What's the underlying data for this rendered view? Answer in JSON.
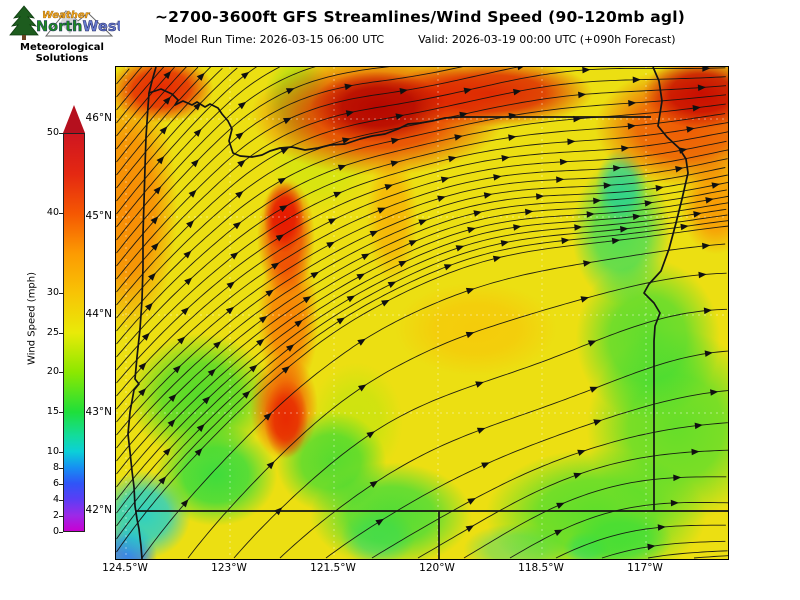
{
  "branding": {
    "weather": "Weather",
    "north": "North",
    "west": "West",
    "tagline_line1": "Meteorological",
    "tagline_line2": "Solutions"
  },
  "header": {
    "title": "~2700-3600ft GFS Streamlines/Wind Speed (90-120mb agl)",
    "model_run": "Model Run Time: 2026-03-15 06:00 UTC",
    "valid": "Valid: 2026-03-19 00:00 UTC  (+090h Forecast)"
  },
  "colorbar": {
    "label": "Wind Speed (mph)",
    "min": 0,
    "max": 50,
    "ticks": [
      0,
      2,
      4,
      6,
      8,
      10,
      15,
      20,
      25,
      30,
      40,
      50
    ],
    "arrow_color": "#b5101e",
    "gradient_stops": [
      [
        0,
        "#c800d2"
      ],
      [
        4,
        "#9b2ae8"
      ],
      [
        8,
        "#5a3ef5"
      ],
      [
        12,
        "#2f55f7"
      ],
      [
        16,
        "#1690f2"
      ],
      [
        20,
        "#0bd0d8"
      ],
      [
        24,
        "#13dc9c"
      ],
      [
        30,
        "#1fdf3a"
      ],
      [
        40,
        "#8ce800"
      ],
      [
        50,
        "#e9ea08"
      ],
      [
        60,
        "#f8c305"
      ],
      [
        70,
        "#fc9a02"
      ],
      [
        80,
        "#f55702"
      ],
      [
        90,
        "#e42812"
      ],
      [
        100,
        "#cf1620"
      ]
    ]
  },
  "axes": {
    "lat_labels": [
      {
        "text": "46°N",
        "deg": 46
      },
      {
        "text": "45°N",
        "deg": 45
      },
      {
        "text": "44°N",
        "deg": 44
      },
      {
        "text": "43°N",
        "deg": 43
      },
      {
        "text": "42°N",
        "deg": 42
      }
    ],
    "lon_labels": [
      {
        "text": "124.5°W",
        "deg": 124.5
      },
      {
        "text": "123°W",
        "deg": 123
      },
      {
        "text": "121.5°W",
        "deg": 121.5
      },
      {
        "text": "120°W",
        "deg": 120
      },
      {
        "text": "118.5°W",
        "deg": 118.5
      },
      {
        "text": "117°W",
        "deg": 117
      }
    ]
  },
  "field": {
    "base_color": "#ecdf12",
    "blobs": [
      [
        262,
        40,
        80,
        42,
        "#b20400",
        0.95
      ],
      [
        375,
        26,
        120,
        40,
        "#dd1800",
        0.9
      ],
      [
        262,
        48,
        150,
        72,
        "#e82500",
        0.85
      ],
      [
        45,
        22,
        62,
        40,
        "#e51500",
        0.9
      ],
      [
        585,
        26,
        68,
        42,
        "#c70800",
        0.95
      ],
      [
        568,
        60,
        105,
        70,
        "#ee3a01",
        0.8
      ],
      [
        168,
        150,
        24,
        42,
        "#e41200",
        0.9
      ],
      [
        170,
        170,
        34,
        70,
        "#ee2900",
        0.8
      ],
      [
        170,
        352,
        26,
        46,
        "#e72301",
        0.9
      ],
      [
        168,
        340,
        40,
        62,
        "#f04c02",
        0.8
      ],
      [
        172,
        252,
        36,
        88,
        "#fa7302",
        0.85
      ],
      [
        12,
        140,
        58,
        150,
        "#fa7c02",
        0.85
      ],
      [
        600,
        138,
        42,
        58,
        "#fa9002",
        0.85
      ],
      [
        276,
        150,
        30,
        78,
        "#fba502",
        0.7
      ],
      [
        360,
        262,
        95,
        55,
        "#fbbc05",
        0.55
      ],
      [
        182,
        32,
        40,
        52,
        "#96dd12",
        0.8
      ],
      [
        205,
        95,
        65,
        60,
        "#c8e80e",
        0.6
      ],
      [
        505,
        120,
        30,
        45,
        "#1ed0a0",
        0.75
      ],
      [
        505,
        165,
        58,
        85,
        "#2edc62",
        0.8
      ],
      [
        532,
        272,
        85,
        95,
        "#3cdc35",
        0.8
      ],
      [
        560,
        360,
        105,
        115,
        "#44de2f",
        0.8
      ],
      [
        85,
        330,
        85,
        75,
        "#3bda2e",
        0.85
      ],
      [
        100,
        408,
        72,
        60,
        "#2cdc40",
        0.9
      ],
      [
        215,
        395,
        65,
        60,
        "#35da36",
        0.8
      ],
      [
        240,
        355,
        55,
        70,
        "#b8e60e",
        0.6
      ],
      [
        28,
        448,
        55,
        52,
        "#1ccfd2",
        0.9
      ],
      [
        12,
        488,
        34,
        38,
        "#2f80f2",
        0.95
      ],
      [
        275,
        448,
        95,
        62,
        "#38dc3c",
        0.85
      ],
      [
        262,
        470,
        44,
        33,
        "#25d7a2",
        0.6
      ],
      [
        480,
        448,
        130,
        78,
        "#45de30",
        0.85
      ],
      [
        505,
        472,
        60,
        36,
        "#2ee04e",
        0.8
      ],
      [
        470,
        481,
        27,
        19,
        "#24d8b4",
        0.7
      ],
      [
        400,
        482,
        62,
        30,
        "#30d986",
        0.5
      ]
    ]
  },
  "borders": {
    "color": "#141414",
    "columbia_river_or_wa": [
      [
        40,
        0
      ],
      [
        36,
        14
      ],
      [
        33,
        26
      ],
      [
        45,
        22
      ],
      [
        56,
        27
      ],
      [
        62,
        33
      ],
      [
        59,
        38
      ],
      [
        67,
        34
      ],
      [
        76,
        38
      ],
      [
        81,
        35
      ],
      [
        89,
        40
      ],
      [
        94,
        37
      ],
      [
        102,
        41
      ],
      [
        106,
        47
      ],
      [
        112,
        54
      ],
      [
        116,
        62
      ],
      [
        113,
        74
      ],
      [
        117,
        86
      ],
      [
        124,
        89
      ],
      [
        136,
        90
      ],
      [
        146,
        88
      ],
      [
        154,
        84
      ],
      [
        164,
        81
      ],
      [
        176,
        80
      ],
      [
        189,
        83
      ],
      [
        202,
        81
      ],
      [
        214,
        78
      ],
      [
        229,
        77
      ],
      [
        244,
        72
      ],
      [
        256,
        69
      ],
      [
        269,
        67
      ],
      [
        282,
        62
      ],
      [
        292,
        57
      ],
      [
        304,
        56
      ],
      [
        316,
        54
      ],
      [
        329,
        51
      ],
      [
        344,
        50
      ],
      [
        420,
        50
      ],
      [
        535,
        50
      ]
    ],
    "snake_river_or_id": [
      [
        537,
        0
      ],
      [
        543,
        14
      ],
      [
        546,
        34
      ],
      [
        542,
        59
      ],
      [
        551,
        70
      ],
      [
        563,
        81
      ],
      [
        570,
        92
      ],
      [
        572,
        106
      ],
      [
        566,
        132
      ],
      [
        560,
        156
      ],
      [
        553,
        182
      ],
      [
        545,
        204
      ],
      [
        533,
        217
      ],
      [
        528,
        226
      ],
      [
        538,
        236
      ],
      [
        544,
        246
      ],
      [
        539,
        259
      ],
      [
        538,
        274
      ],
      [
        538,
        444
      ]
    ],
    "pacific_coast": [
      [
        33,
        26
      ],
      [
        32,
        40
      ],
      [
        30,
        70
      ],
      [
        29,
        100
      ],
      [
        28,
        135
      ],
      [
        27,
        167
      ],
      [
        27,
        200
      ],
      [
        26,
        233
      ],
      [
        24,
        262
      ],
      [
        21,
        290
      ],
      [
        19,
        312
      ],
      [
        23,
        317
      ],
      [
        18,
        323
      ],
      [
        14,
        345
      ],
      [
        12,
        367
      ],
      [
        14,
        385
      ],
      [
        16,
        404
      ],
      [
        18,
        420
      ],
      [
        19,
        439
      ],
      [
        21,
        452
      ],
      [
        23,
        462
      ],
      [
        25,
        479
      ],
      [
        26,
        492
      ]
    ],
    "border_42n": [
      [
        19,
        444
      ],
      [
        612,
        444
      ]
    ],
    "border_120w_ca_nv": [
      [
        323,
        444
      ],
      [
        323,
        492
      ]
    ]
  },
  "streamlines": {
    "color": "#101010",
    "width": 0.9,
    "opacity": 0.92,
    "arrow_spacing": 120
  },
  "grid": {
    "color": "rgba(255,255,255,0.45)",
    "lat_y": [
      52,
      150,
      248,
      346,
      444
    ],
    "lon_x": [
      10,
      114,
      218,
      322,
      426,
      530
    ]
  }
}
